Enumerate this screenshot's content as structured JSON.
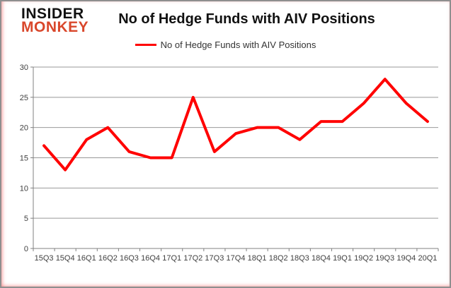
{
  "logo": {
    "line1": "INSIDER",
    "line2": "MONKEY",
    "accent_color": "#d9472b"
  },
  "title": "No of Hedge Funds with AIV Positions",
  "legend": {
    "label": "No of Hedge Funds with AIV Positions",
    "color": "#ff0000"
  },
  "chart_data": {
    "type": "line",
    "title": "No of Hedge Funds with AIV Positions",
    "categories": [
      "15Q3",
      "15Q4",
      "16Q1",
      "16Q2",
      "16Q3",
      "16Q4",
      "17Q1",
      "17Q2",
      "17Q3",
      "17Q4",
      "18Q1",
      "18Q2",
      "18Q3",
      "18Q4",
      "19Q1",
      "19Q2",
      "19Q3",
      "19Q4",
      "20Q1"
    ],
    "values": [
      17,
      13,
      18,
      20,
      16,
      15,
      15,
      25,
      16,
      19,
      20,
      20,
      18,
      21,
      21,
      24,
      28,
      24,
      21
    ],
    "xlabel": "",
    "ylabel": "",
    "ylim": [
      0,
      30
    ],
    "ytick_step": 5,
    "yticks": [
      0,
      5,
      10,
      15,
      20,
      25,
      30
    ],
    "grid": true,
    "legend_position": "top",
    "line_color": "#ff0000",
    "line_width": 4,
    "gridline_color": "#999999",
    "axis_color": "#808080",
    "tick_label_color": "#404040"
  }
}
